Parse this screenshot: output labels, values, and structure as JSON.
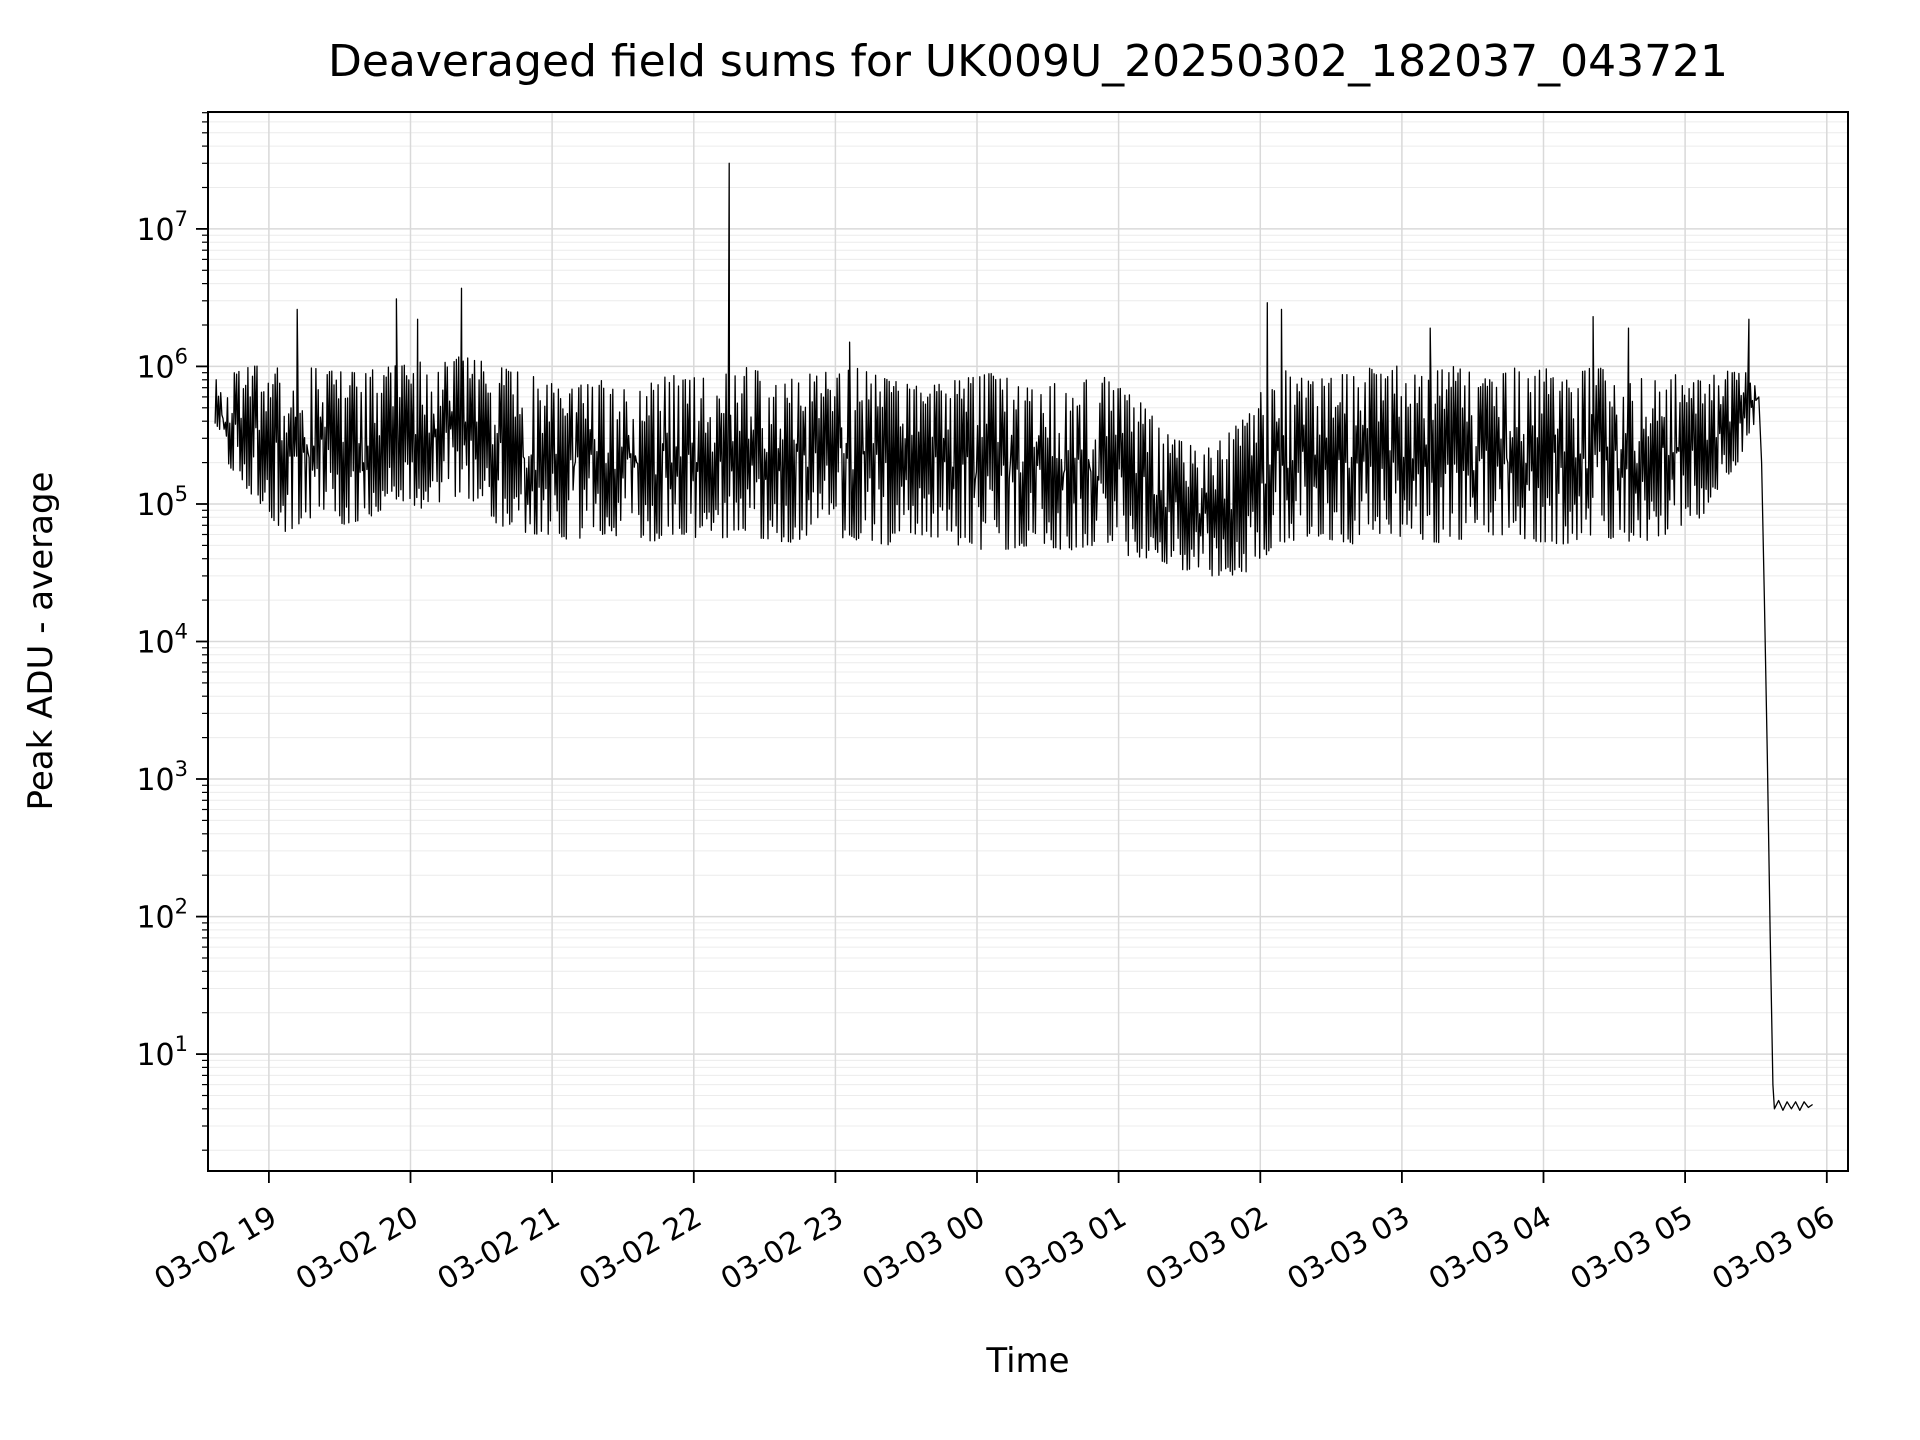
{
  "chart_data": {
    "type": "line",
    "title": "Deaveraged field sums for UK009U_20250302_182037_043721",
    "xlabel": "Time",
    "ylabel": "Peak ADU - average",
    "line_color": "#000000",
    "background_color": "#ffffff",
    "grid": true,
    "grid_major_color": "#d9d9d9",
    "grid_minor_color": "#ececec",
    "y_scale": "log",
    "xlim": [
      18.57,
      30.15
    ],
    "ylim_log10": [
      0.15,
      7.85
    ],
    "x_ticks": [
      {
        "value": 19,
        "label": "03-02 19"
      },
      {
        "value": 20,
        "label": "03-02 20"
      },
      {
        "value": 21,
        "label": "03-02 21"
      },
      {
        "value": 22,
        "label": "03-02 22"
      },
      {
        "value": 23,
        "label": "03-02 23"
      },
      {
        "value": 24,
        "label": "03-03 00"
      },
      {
        "value": 25,
        "label": "03-03 01"
      },
      {
        "value": 26,
        "label": "03-03 02"
      },
      {
        "value": 27,
        "label": "03-03 03"
      },
      {
        "value": 28,
        "label": "03-03 04"
      },
      {
        "value": 29,
        "label": "03-03 05"
      },
      {
        "value": 30,
        "label": "03-03 06"
      }
    ],
    "y_tick_exponents": [
      1,
      2,
      3,
      4,
      5,
      6,
      7
    ],
    "envelope": [
      [
        18.62,
        250000,
        800000
      ],
      [
        18.87,
        120000,
        1000000
      ],
      [
        19.12,
        60000,
        1050000
      ],
      [
        19.37,
        90000,
        950000
      ],
      [
        19.62,
        60000,
        900000
      ],
      [
        19.87,
        110000,
        1000000
      ],
      [
        20.12,
        90000,
        1100000
      ],
      [
        20.37,
        120000,
        1200000
      ],
      [
        20.62,
        70000,
        1000000
      ],
      [
        20.87,
        60000,
        850000
      ],
      [
        21.12,
        55000,
        700000
      ],
      [
        21.37,
        60000,
        800000
      ],
      [
        21.62,
        50000,
        700000
      ],
      [
        21.87,
        60000,
        900000
      ],
      [
        22.12,
        55000,
        800000
      ],
      [
        22.37,
        60000,
        1000000
      ],
      [
        22.62,
        50000,
        800000
      ],
      [
        22.87,
        60000,
        900000
      ],
      [
        23.12,
        55000,
        1000000
      ],
      [
        23.37,
        50000,
        800000
      ],
      [
        23.62,
        60000,
        700000
      ],
      [
        23.87,
        50000,
        800000
      ],
      [
        24.12,
        45000,
        900000
      ],
      [
        24.37,
        50000,
        700000
      ],
      [
        24.62,
        45000,
        800000
      ],
      [
        24.87,
        50000,
        900000
      ],
      [
        25.12,
        40000,
        600000
      ],
      [
        25.37,
        35000,
        300000
      ],
      [
        25.62,
        30000,
        250000
      ],
      [
        25.87,
        30000,
        400000
      ],
      [
        26.12,
        50000,
        1000000
      ],
      [
        26.37,
        60000,
        800000
      ],
      [
        26.62,
        50000,
        900000
      ],
      [
        26.87,
        60000,
        1100000
      ],
      [
        27.12,
        55000,
        900000
      ],
      [
        27.37,
        50000,
        1000000
      ],
      [
        27.62,
        60000,
        800000
      ],
      [
        27.87,
        55000,
        1200000
      ],
      [
        28.12,
        50000,
        900000
      ],
      [
        28.37,
        60000,
        1000000
      ],
      [
        28.62,
        50000,
        800000
      ],
      [
        28.87,
        60000,
        900000
      ],
      [
        29.12,
        80000,
        800000
      ],
      [
        29.37,
        200000,
        1000000
      ],
      [
        29.5,
        400000,
        900000
      ]
    ],
    "spikes": [
      [
        19.2,
        2600000
      ],
      [
        19.9,
        3100000
      ],
      [
        20.05,
        2200000
      ],
      [
        20.36,
        3700000
      ],
      [
        22.25,
        30000000
      ],
      [
        23.1,
        1500000
      ],
      [
        26.05,
        2900000
      ],
      [
        26.15,
        2600000
      ],
      [
        27.2,
        1900000
      ],
      [
        28.35,
        2300000
      ],
      [
        28.6,
        1900000
      ],
      [
        29.45,
        2200000
      ]
    ],
    "tail": [
      [
        29.52,
        600000
      ],
      [
        29.54,
        200000
      ],
      [
        29.56,
        20000
      ],
      [
        29.58,
        1500
      ],
      [
        29.6,
        80
      ],
      [
        29.62,
        6
      ],
      [
        29.63,
        4.0
      ],
      [
        29.66,
        4.6
      ],
      [
        29.69,
        3.9
      ],
      [
        29.72,
        4.5
      ],
      [
        29.75,
        4.0
      ],
      [
        29.78,
        4.5
      ],
      [
        29.81,
        3.9
      ],
      [
        29.84,
        4.5
      ],
      [
        29.87,
        4.1
      ],
      [
        29.9,
        4.3
      ]
    ]
  }
}
